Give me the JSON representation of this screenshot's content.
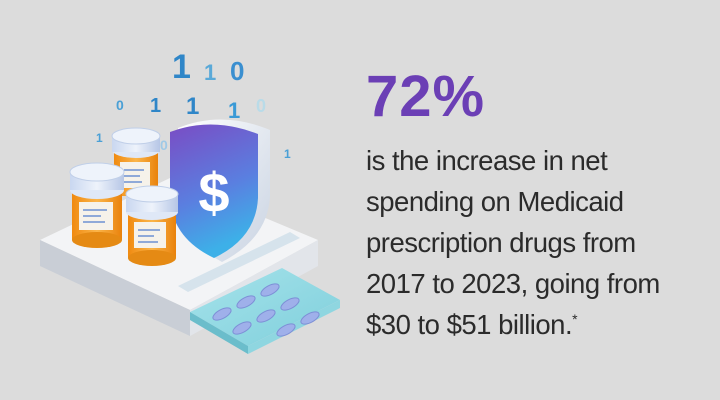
{
  "stat": {
    "value": "72%",
    "description_lines": [
      "is the increase in net",
      "spending on Medicaid",
      "prescription drugs from",
      "2017 to 2023, going from",
      "$30 to $51 billion."
    ],
    "footnote_marker": "*"
  },
  "illustration": {
    "binary_digits": [
      "1",
      "1",
      "0",
      "0",
      "1",
      "1",
      "1",
      "0",
      "1",
      "0",
      "1"
    ],
    "shield_symbol": "$",
    "icons": [
      "pill-bottle-icon",
      "shield-dollar-icon",
      "blister-pack-icon",
      "binary-code-icon"
    ]
  },
  "colors": {
    "background": "#dcdcdc",
    "accent": "#6b3fb5",
    "text": "#2b2b2b",
    "pill_orange": "#f39a1c",
    "shield_gradient_start": "#7a4cc4",
    "shield_gradient_end": "#3db0e8"
  }
}
